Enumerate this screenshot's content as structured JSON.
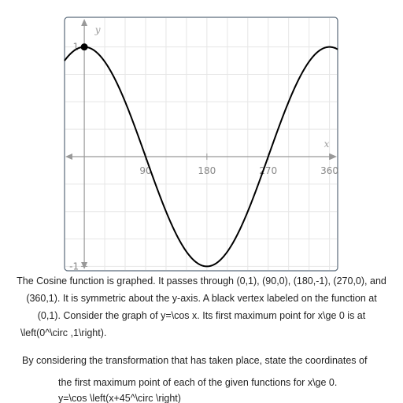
{
  "chart_data": {
    "type": "line",
    "function": "cos",
    "xlabel": "x",
    "ylabel": "y",
    "xlim": [
      -29,
      372
    ],
    "ylim": [
      -1.04,
      1.27
    ],
    "x_ticks": [
      90,
      180,
      270,
      360
    ],
    "x_tick_labels": [
      "90",
      "180",
      "270",
      "360"
    ],
    "y_ticks": [
      1,
      -1
    ],
    "y_tick_labels": [
      "1",
      "-1"
    ],
    "grid": true,
    "points": [
      {
        "x": 0,
        "y": 1
      }
    ],
    "colors": {
      "curve": "#000000",
      "axis": "#999999",
      "grid": "#e6e6e6",
      "frame": "#5a6a7a",
      "point": "#000000"
    }
  },
  "text": {
    "description_1": "The Cosine function is graphed. It passes through (0,1), (90,0), (180,-1), (270,0), and",
    "description_2": "(360,1). It is symmetric about the y-axis. A black vertex labeled on the function at",
    "description_3": "(0,1). Consider the graph of y=\\cos x. Its first maximum point for x\\ge 0 is at",
    "description_4": "\\left(0^\\circ ,1\\right).",
    "question_1": "By considering the transformation that has taken place, state the coordinates of",
    "question_2": "the first maximum point of each of the given functions for x\\ge 0.",
    "question_3": "y=\\cos \\left(x+45^\\circ \\right)"
  }
}
